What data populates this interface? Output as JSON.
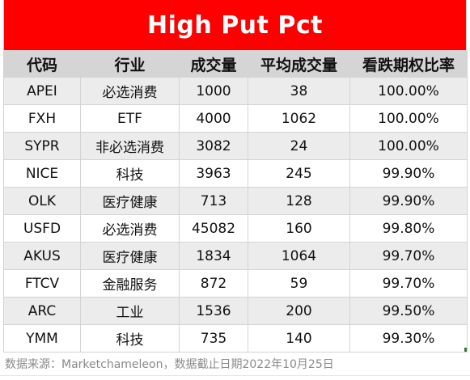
{
  "title": "High Put Pct",
  "headers": [
    "代码",
    "行业",
    "成交量",
    "平均成交量",
    "看跌期权比率"
  ],
  "rows": [
    {
      "ticker": "APEI",
      "sector": "必选消费",
      "volume": "1000",
      "avg_volume": "38",
      "put_ratio": "100.00%"
    },
    {
      "ticker": "FXH",
      "sector": "ETF",
      "volume": "4000",
      "avg_volume": "1062",
      "put_ratio": "100.00%"
    },
    {
      "ticker": "SYPR",
      "sector": "非必选消费",
      "volume": "3082",
      "avg_volume": "24",
      "put_ratio": "100.00%"
    },
    {
      "ticker": "NICE",
      "sector": "科技",
      "volume": "3963",
      "avg_volume": "245",
      "put_ratio": "99.90%"
    },
    {
      "ticker": "OLK",
      "sector": "医疗健康",
      "volume": "713",
      "avg_volume": "128",
      "put_ratio": "99.90%"
    },
    {
      "ticker": "USFD",
      "sector": "必选消费",
      "volume": "45082",
      "avg_volume": "160",
      "put_ratio": "99.80%"
    },
    {
      "ticker": "AKUS",
      "sector": "医疗健康",
      "volume": "1834",
      "avg_volume": "1064",
      "put_ratio": "99.70%"
    },
    {
      "ticker": "FTCV",
      "sector": "金融服务",
      "volume": "872",
      "avg_volume": "59",
      "put_ratio": "99.70%"
    },
    {
      "ticker": "ARC",
      "sector": "工业",
      "volume": "1536",
      "avg_volume": "200",
      "put_ratio": "99.50%"
    },
    {
      "ticker": "YMM",
      "sector": "科技",
      "volume": "735",
      "avg_volume": "140",
      "put_ratio": "99.30%"
    }
  ],
  "footer": "数据来源：Marketchameleon，数据截止日期2022年10月25日",
  "colors": {
    "title_bg": "#fe0000",
    "title_text": "#ffffff",
    "header_bg": "#d5d5d5",
    "odd_row_bg": "#ececec",
    "even_row_bg": "#ffffff",
    "footer_text": "#8a8a8a"
  }
}
